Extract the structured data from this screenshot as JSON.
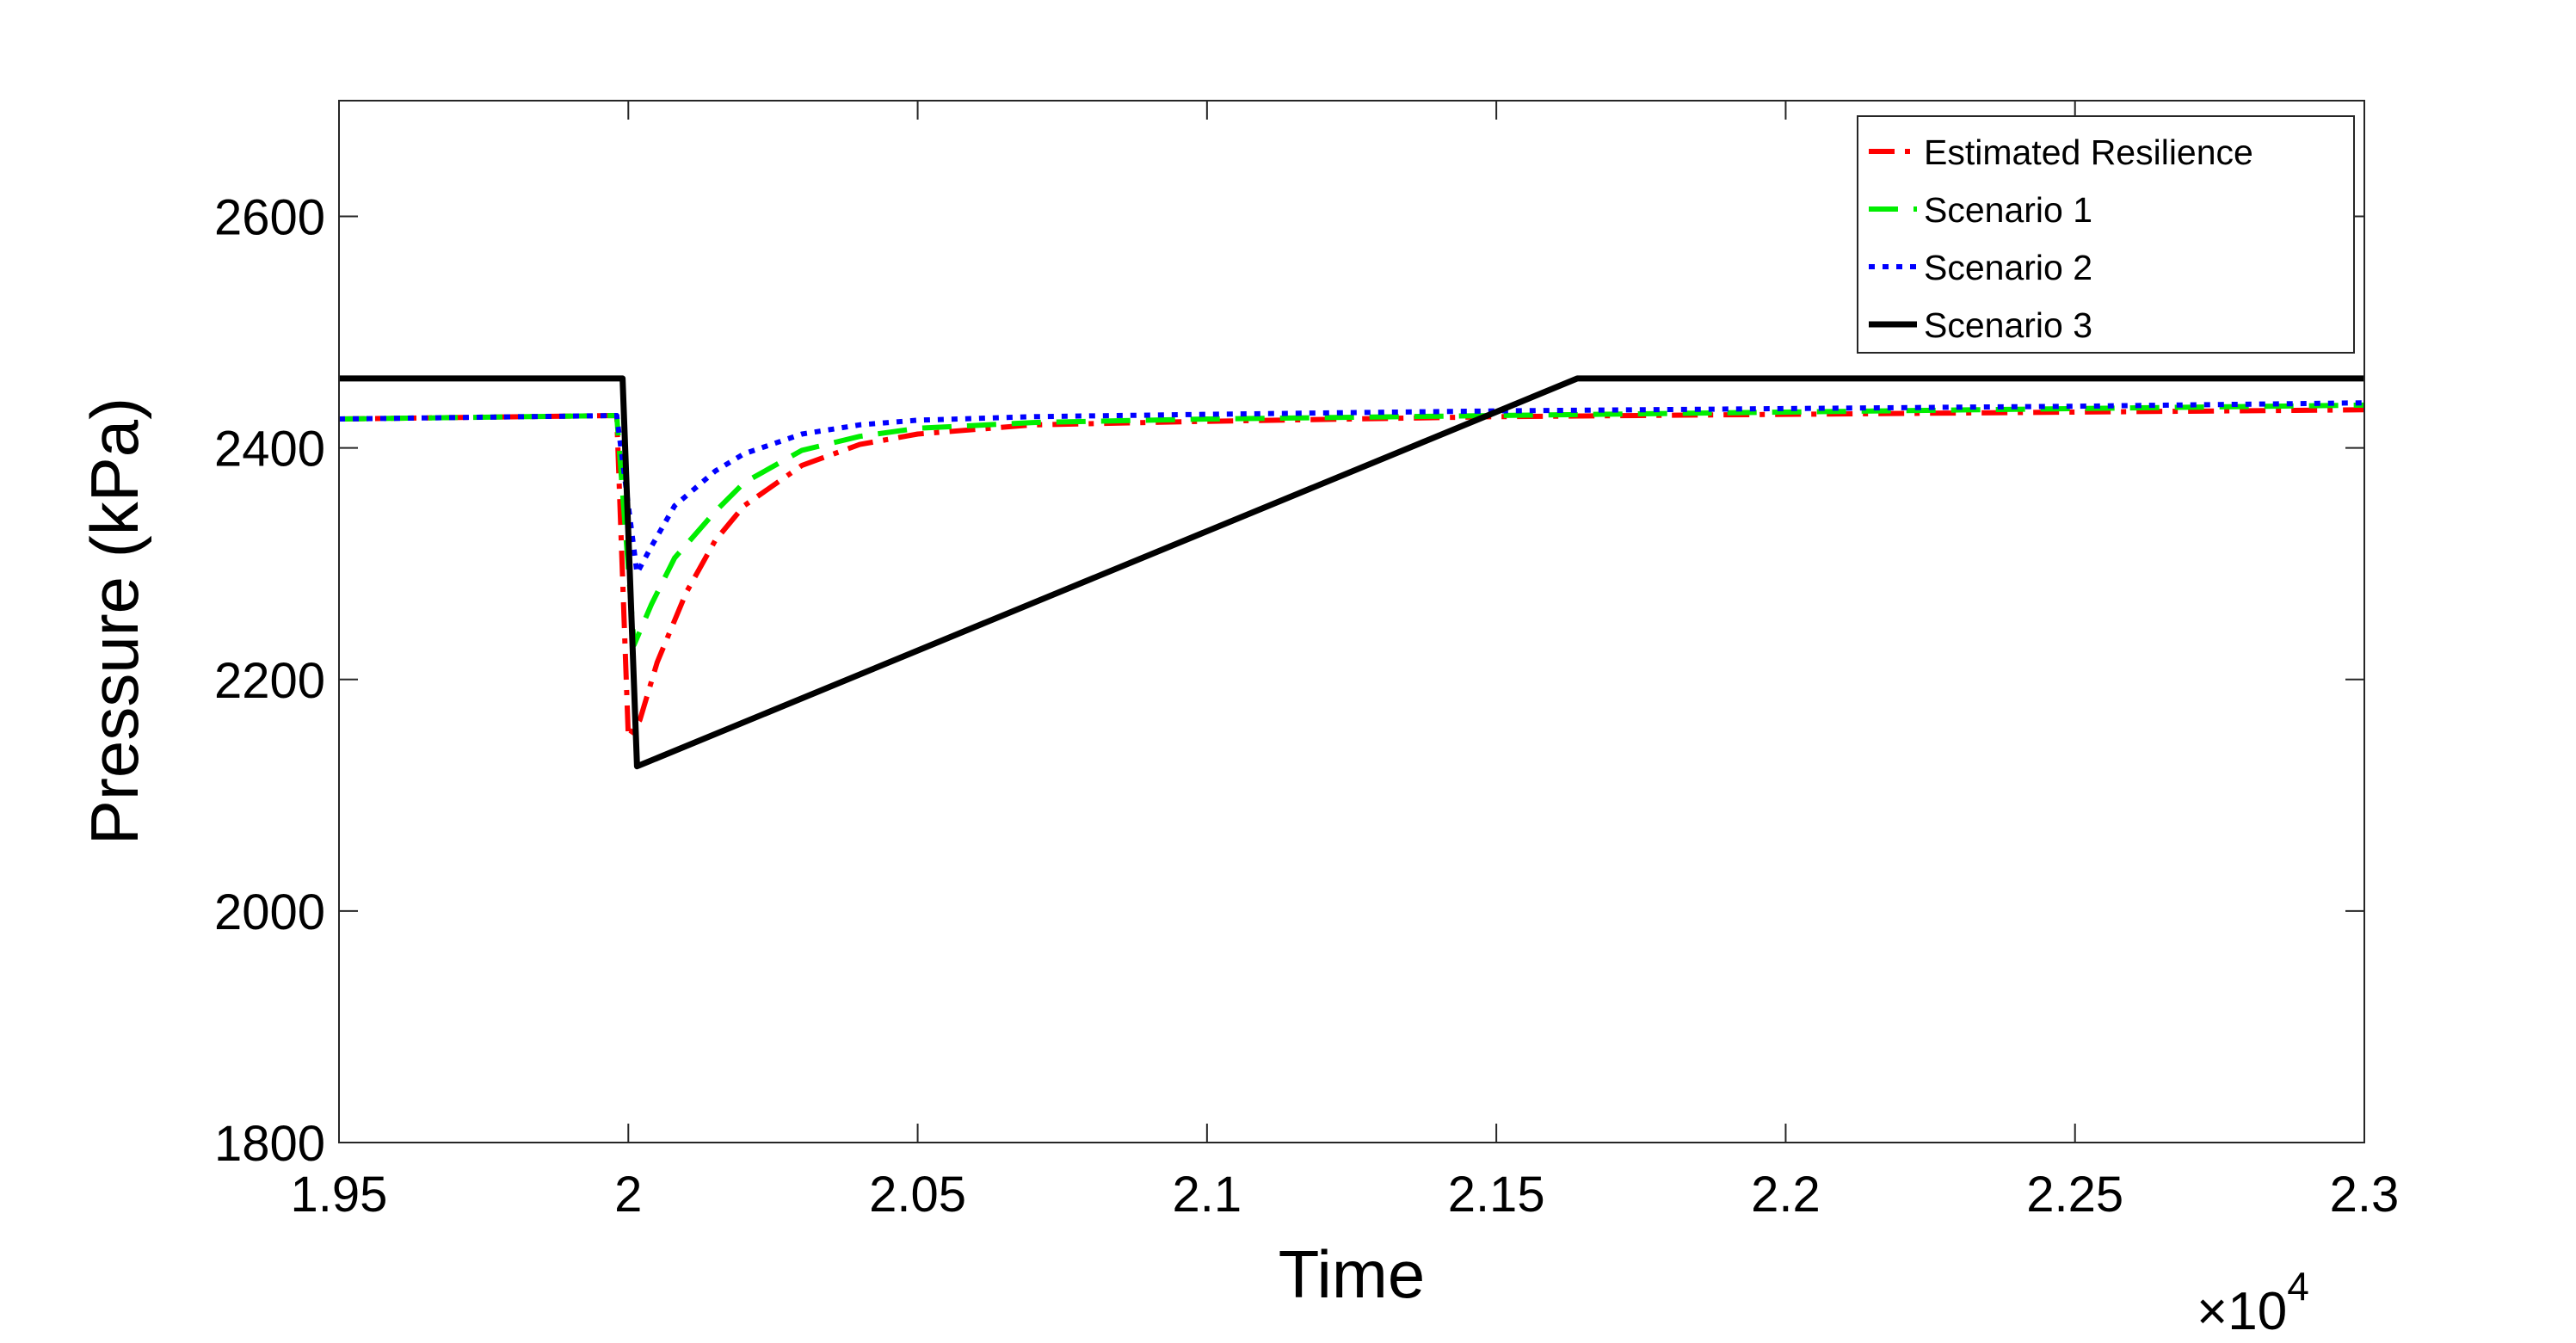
{
  "chart_data": {
    "type": "line",
    "title": "",
    "xlabel": "Time",
    "ylabel": "Pressure (kPa)",
    "x_exponent_times": "×",
    "x_exponent_base": "10",
    "x_exponent_power": "4",
    "xlim": [
      1.95,
      2.3
    ],
    "ylim": [
      1800,
      2700
    ],
    "xticks": [
      1.95,
      2.0,
      2.05,
      2.1,
      2.15,
      2.2,
      2.25,
      2.3
    ],
    "xtick_labels": [
      "1.95",
      "2",
      "2.05",
      "2.1",
      "2.15",
      "2.2",
      "2.25",
      "2.3"
    ],
    "yticks": [
      1800,
      2000,
      2200,
      2400,
      2600
    ],
    "ytick_labels": [
      "1800",
      "2000",
      "2200",
      "2400",
      "2600"
    ],
    "grid": false,
    "legend_position": "top-right",
    "series": [
      {
        "name": "Estimated Resilience",
        "color": "#ff0000",
        "dash": "dashdot",
        "x": [
          1.95,
          1.998,
          2.0,
          2.002,
          2.005,
          2.01,
          2.015,
          2.02,
          2.03,
          2.04,
          2.05,
          2.07,
          2.1,
          2.15,
          2.2,
          2.25,
          2.3
        ],
        "y": [
          2425,
          2428,
          2150,
          2165,
          2215,
          2275,
          2320,
          2350,
          2385,
          2403,
          2412,
          2420,
          2423,
          2427,
          2429,
          2431,
          2433
        ]
      },
      {
        "name": "Scenario 1",
        "color": "#00ee00",
        "dash": "dash",
        "x": [
          1.95,
          1.998,
          2.001,
          2.004,
          2.008,
          2.015,
          2.02,
          2.03,
          2.04,
          2.05,
          2.07,
          2.1,
          2.15,
          2.2,
          2.25,
          2.3
        ],
        "y": [
          2425,
          2428,
          2230,
          2265,
          2305,
          2345,
          2370,
          2398,
          2410,
          2417,
          2422,
          2425,
          2428,
          2431,
          2434,
          2437
        ]
      },
      {
        "name": "Scenario 2",
        "color": "#0000ff",
        "dash": "dot",
        "x": [
          1.95,
          1.998,
          2.0015,
          2.004,
          2.008,
          2.015,
          2.02,
          2.03,
          2.04,
          2.05,
          2.07,
          2.1,
          2.15,
          2.2,
          2.25,
          2.3
        ],
        "y": [
          2425,
          2428,
          2292,
          2315,
          2350,
          2380,
          2395,
          2412,
          2420,
          2424,
          2427,
          2429,
          2432,
          2434,
          2436,
          2439
        ]
      },
      {
        "name": "Scenario 3",
        "color": "#000000",
        "dash": "solid",
        "x": [
          1.95,
          1.999,
          2.0015,
          2.164,
          2.3
        ],
        "y": [
          2460,
          2460,
          2125,
          2460,
          2460
        ]
      }
    ]
  }
}
